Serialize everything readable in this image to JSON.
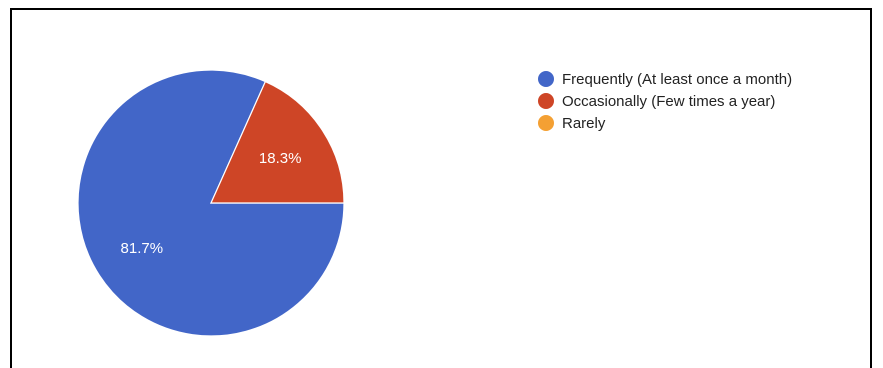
{
  "chart_data": {
    "type": "pie",
    "categories": [
      "Frequently (At least once a month)",
      "Occasionally (Few times a year)",
      "Rarely"
    ],
    "values": [
      81.7,
      18.3,
      0
    ],
    "data_labels": [
      "81.7%",
      "18.3%",
      ""
    ],
    "colors": [
      "#4266c8",
      "#ce4526",
      "#f4a033"
    ],
    "legend_position": "right",
    "title": ""
  }
}
